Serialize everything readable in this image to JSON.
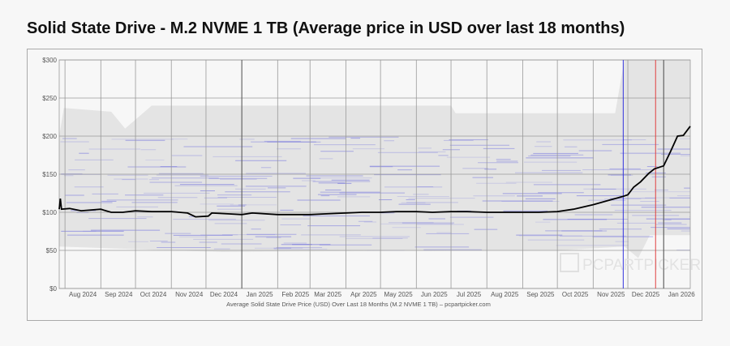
{
  "chart_data": {
    "type": "line",
    "title": "Solid State Drive - M.2 NVME 1 TB (Average price in USD over last 18 months)",
    "caption": "Average Solid State Drive Price (USD) Over Last 18 Months (M.2 NVME 1 TB) – pcpartpicker.com",
    "watermark": "PCPARTPICKER",
    "xlim": [
      "2024-07-27",
      "2026-01-24"
    ],
    "ylim": [
      0,
      300
    ],
    "grid": true,
    "y_ticks": [
      {
        "v": 0,
        "label": "$0"
      },
      {
        "v": 50,
        "label": "$50"
      },
      {
        "v": 100,
        "label": "$100"
      },
      {
        "v": 150,
        "label": "$150"
      },
      {
        "v": 200,
        "label": "$200"
      },
      {
        "v": 250,
        "label": "$250"
      },
      {
        "v": 300,
        "label": "$300"
      }
    ],
    "x_ticks": [
      {
        "d": "2024-08-01",
        "label": "Aug 2024"
      },
      {
        "d": "2024-09-01",
        "label": "Sep 2024"
      },
      {
        "d": "2024-10-01",
        "label": "Oct 2024"
      },
      {
        "d": "2024-11-01",
        "label": "Nov 2024"
      },
      {
        "d": "2024-12-01",
        "label": "Dec 2024"
      },
      {
        "d": "2025-01-01",
        "label": "Jan 2025"
      },
      {
        "d": "2025-02-01",
        "label": "Feb 2025"
      },
      {
        "d": "2025-03-01",
        "label": "Mar 2025"
      },
      {
        "d": "2025-04-01",
        "label": "Apr 2025"
      },
      {
        "d": "2025-05-01",
        "label": "May 2025"
      },
      {
        "d": "2025-06-01",
        "label": "Jun 2025"
      },
      {
        "d": "2025-07-01",
        "label": "Jul 2025"
      },
      {
        "d": "2025-08-01",
        "label": "Aug 2025"
      },
      {
        "d": "2025-09-01",
        "label": "Sep 2025"
      },
      {
        "d": "2025-10-01",
        "label": "Oct 2025"
      },
      {
        "d": "2025-11-01",
        "label": "Nov 2025"
      },
      {
        "d": "2025-12-01",
        "label": "Dec 2025"
      },
      {
        "d": "2026-01-01",
        "label": "Jan 2026"
      }
    ],
    "markers": [
      {
        "d": "2025-01-01",
        "color": "#555555"
      },
      {
        "d": "2025-11-27",
        "color": "#3333dd"
      },
      {
        "d": "2025-12-25",
        "color": "#e04040"
      },
      {
        "d": "2026-01-01",
        "color": "#555555"
      }
    ],
    "series": [
      {
        "color": "#000000",
        "points": [
          [
            "2024-07-27",
            104
          ],
          [
            "2024-07-28",
            118
          ],
          [
            "2024-07-29",
            104
          ],
          [
            "2024-08-05",
            105
          ],
          [
            "2024-08-15",
            102
          ],
          [
            "2024-09-01",
            104
          ],
          [
            "2024-09-10",
            100
          ],
          [
            "2024-09-20",
            100
          ],
          [
            "2024-10-01",
            102
          ],
          [
            "2024-10-15",
            101
          ],
          [
            "2024-11-01",
            101
          ],
          [
            "2024-11-15",
            99
          ],
          [
            "2024-11-22",
            94
          ],
          [
            "2024-12-03",
            95
          ],
          [
            "2024-12-06",
            99
          ],
          [
            "2024-12-20",
            98
          ],
          [
            "2025-01-01",
            97
          ],
          [
            "2025-01-10",
            99
          ],
          [
            "2025-02-01",
            97
          ],
          [
            "2025-02-15",
            97
          ],
          [
            "2025-03-01",
            97
          ],
          [
            "2025-03-15",
            98
          ],
          [
            "2025-04-01",
            99
          ],
          [
            "2025-04-15",
            100
          ],
          [
            "2025-05-01",
            100
          ],
          [
            "2025-05-15",
            101
          ],
          [
            "2025-06-01",
            101
          ],
          [
            "2025-06-15",
            100
          ],
          [
            "2025-07-01",
            101
          ],
          [
            "2025-07-15",
            101
          ],
          [
            "2025-08-01",
            100
          ],
          [
            "2025-08-15",
            100
          ],
          [
            "2025-09-01",
            100
          ],
          [
            "2025-09-15",
            100
          ],
          [
            "2025-10-01",
            101
          ],
          [
            "2025-10-15",
            104
          ],
          [
            "2025-11-01",
            110
          ],
          [
            "2025-11-15",
            116
          ],
          [
            "2025-11-27",
            121
          ],
          [
            "2025-12-01",
            123
          ],
          [
            "2025-12-06",
            133
          ],
          [
            "2025-12-12",
            140
          ],
          [
            "2025-12-19",
            151
          ],
          [
            "2025-12-24",
            157
          ],
          [
            "2026-01-01",
            161
          ],
          [
            "2026-01-07",
            180
          ],
          [
            "2026-01-13",
            200
          ],
          [
            "2026-01-18",
            201
          ],
          [
            "2026-01-24",
            213
          ]
        ]
      }
    ],
    "price_range_band": {
      "color": "#e4e4e4",
      "upper": [
        [
          "2024-07-27",
          200
        ],
        [
          "2024-07-31",
          237
        ],
        [
          "2024-09-10",
          232
        ],
        [
          "2024-09-22",
          210
        ],
        [
          "2024-10-15",
          240
        ],
        [
          "2025-07-01",
          240
        ],
        [
          "2025-07-05",
          230
        ],
        [
          "2025-11-20",
          230
        ],
        [
          "2025-11-28",
          300
        ],
        [
          "2026-01-24",
          300
        ]
      ],
      "lower": [
        [
          "2024-07-27",
          55
        ],
        [
          "2024-11-01",
          50
        ],
        [
          "2024-12-15",
          48
        ],
        [
          "2025-07-01",
          50
        ],
        [
          "2025-10-01",
          50
        ],
        [
          "2025-11-28",
          55
        ],
        [
          "2025-12-10",
          40
        ],
        [
          "2025-12-20",
          70
        ],
        [
          "2026-01-24",
          70
        ]
      ]
    },
    "individual_prices_color": "#5555dd"
  }
}
